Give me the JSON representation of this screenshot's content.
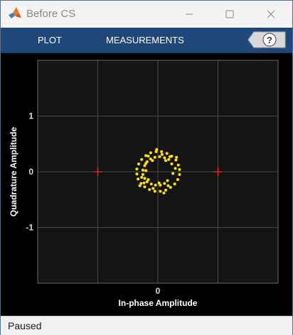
{
  "window": {
    "title": "Before CS"
  },
  "toolstrip": {
    "tabs": [
      {
        "label": "PLOT"
      },
      {
        "label": "MEASUREMENTS"
      }
    ],
    "help_symbol": "?"
  },
  "status": {
    "text": "Paused"
  },
  "colors": {
    "toolstrip": "#1f4778",
    "plot_background": "#141414",
    "grid": "#5a5a5a",
    "points": "#ffe400",
    "reference_markers": "#ff2020"
  },
  "chart_data": {
    "type": "scatter",
    "xlabel": "In-phase Amplitude",
    "ylabel": "Quadrature Amplitude",
    "xlim": [
      -2,
      2
    ],
    "ylim": [
      -2,
      2
    ],
    "x_ticks": [
      "0"
    ],
    "y_ticks": [
      "1",
      "0",
      "-1"
    ],
    "grid": true,
    "reference_constellation": [
      {
        "x": -1,
        "y": 0
      },
      {
        "x": 1,
        "y": 0
      }
    ],
    "series": [
      {
        "points": [
          {
            "x": 0.36,
            "y": 0.04
          },
          {
            "x": 0.34,
            "y": 0.12
          },
          {
            "x": 0.3,
            "y": 0.21
          },
          {
            "x": 0.23,
            "y": 0.28
          },
          {
            "x": 0.15,
            "y": 0.33
          },
          {
            "x": 0.06,
            "y": 0.36
          },
          {
            "x": -0.03,
            "y": 0.36
          },
          {
            "x": -0.12,
            "y": 0.34
          },
          {
            "x": -0.2,
            "y": 0.29
          },
          {
            "x": -0.27,
            "y": 0.22
          },
          {
            "x": -0.32,
            "y": 0.14
          },
          {
            "x": -0.35,
            "y": 0.05
          },
          {
            "x": -0.35,
            "y": -0.04
          },
          {
            "x": -0.33,
            "y": -0.13
          },
          {
            "x": -0.28,
            "y": -0.21
          },
          {
            "x": -0.22,
            "y": -0.27
          },
          {
            "x": -0.14,
            "y": -0.32
          },
          {
            "x": -0.05,
            "y": -0.35
          },
          {
            "x": 0.04,
            "y": -0.35
          },
          {
            "x": 0.13,
            "y": -0.33
          },
          {
            "x": 0.21,
            "y": -0.28
          },
          {
            "x": 0.28,
            "y": -0.22
          },
          {
            "x": 0.33,
            "y": -0.14
          },
          {
            "x": 0.36,
            "y": -0.05
          },
          {
            "x": 0.31,
            "y": 0.26
          },
          {
            "x": -0.02,
            "y": 0.4
          },
          {
            "x": -0.3,
            "y": -0.25
          },
          {
            "x": 0.1,
            "y": -0.38
          },
          {
            "x": 0.23,
            "y": 0.14
          },
          {
            "x": 0.18,
            "y": 0.22
          },
          {
            "x": 0.11,
            "y": 0.25
          },
          {
            "x": 0.03,
            "y": 0.27
          },
          {
            "x": -0.05,
            "y": 0.26
          },
          {
            "x": -0.12,
            "y": 0.23
          },
          {
            "x": -0.18,
            "y": 0.18
          },
          {
            "x": -0.22,
            "y": 0.11
          },
          {
            "x": -0.25,
            "y": 0.03
          },
          {
            "x": -0.25,
            "y": -0.05
          },
          {
            "x": -0.22,
            "y": -0.12
          },
          {
            "x": -0.18,
            "y": -0.18
          },
          {
            "x": -0.11,
            "y": -0.22
          },
          {
            "x": -0.04,
            "y": -0.24
          },
          {
            "x": 0.04,
            "y": -0.24
          },
          {
            "x": 0.11,
            "y": -0.21
          },
          {
            "x": 0.16,
            "y": -0.16
          },
          {
            "x": 0.13,
            "y": 0.2
          },
          {
            "x": -0.09,
            "y": 0.2
          },
          {
            "x": -0.2,
            "y": 0.02
          },
          {
            "x": -0.16,
            "y": -0.14
          },
          {
            "x": 0.02,
            "y": -0.2
          },
          {
            "x": -0.2,
            "y": 0.15
          },
          {
            "x": 0.2,
            "y": 0.27
          },
          {
            "x": -0.27,
            "y": -0.1
          },
          {
            "x": 0.07,
            "y": 0.31
          },
          {
            "x": -0.16,
            "y": 0.28
          },
          {
            "x": 0.25,
            "y": -0.03
          },
          {
            "x": 0.29,
            "y": 0.06
          },
          {
            "x": -0.08,
            "y": -0.3
          },
          {
            "x": 0.17,
            "y": -0.25
          },
          {
            "x": -0.23,
            "y": -0.2
          }
        ]
      }
    ]
  }
}
